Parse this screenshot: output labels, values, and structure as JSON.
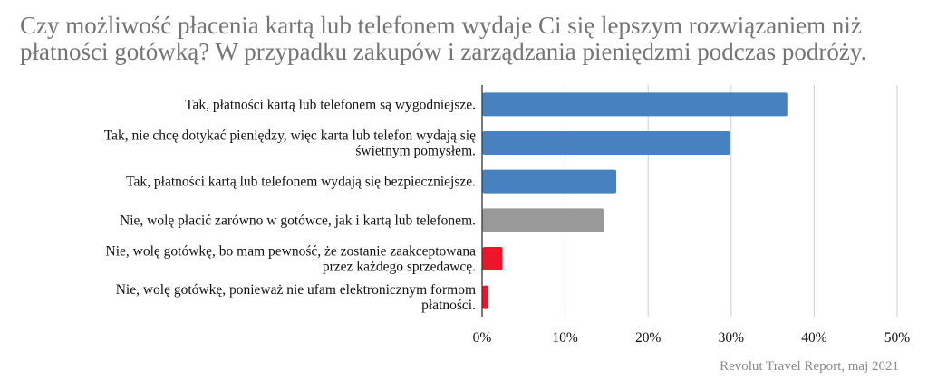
{
  "title": "Czy możliwość płacenia kartą lub telefonem wydaje Ci się lepszym rozwiązaniem niż płatności gotówką? W przypadku zakupów i zarządzania pieniędzmi podczas podróży.",
  "source": "Revolut Travel Report, maj 2021",
  "chart_data": {
    "type": "bar",
    "orientation": "horizontal",
    "title": "Czy możliwość płacenia kartą lub telefonem wydaje Ci się lepszym rozwiązaniem niż płatności gotówką? W przypadku zakupów i zarządzania pieniędzmi podczas podróży.",
    "categories": [
      [
        "Tak, płatności kartą lub telefonem są wygodniejsze."
      ],
      [
        "Tak, nie chcę dotykać pieniędzy, więc karta lub telefon wydają się",
        "świetnym pomysłem."
      ],
      [
        "Tak, płatności kartą lub telefonem wydają się bezpieczniejsze."
      ],
      [
        "Nie, wolę płacić zarówno w gotówce, jak i kartą lub telefonem."
      ],
      [
        "Nie, wolę gotówkę, bo mam pewność, że zostanie zaakceptowana",
        "przez każdego sprzedawcę."
      ],
      [
        "Nie, wolę gotówkę, ponieważ nie ufam elektronicznym formom",
        "płatności."
      ]
    ],
    "values": [
      36.7,
      29.8,
      16.1,
      14.6,
      2.4,
      0.7
    ],
    "colors": [
      "#4682bf",
      "#4682bf",
      "#4682bf",
      "#999999",
      "#f0142a",
      "#f0142a"
    ],
    "xlim": [
      0,
      50
    ],
    "x_ticks": [
      0,
      10,
      20,
      30,
      40,
      50
    ],
    "x_tick_labels": [
      "0%",
      "10%",
      "20%",
      "30%",
      "40%",
      "50%"
    ],
    "grid": "vertical",
    "xlabel": "",
    "ylabel": ""
  }
}
